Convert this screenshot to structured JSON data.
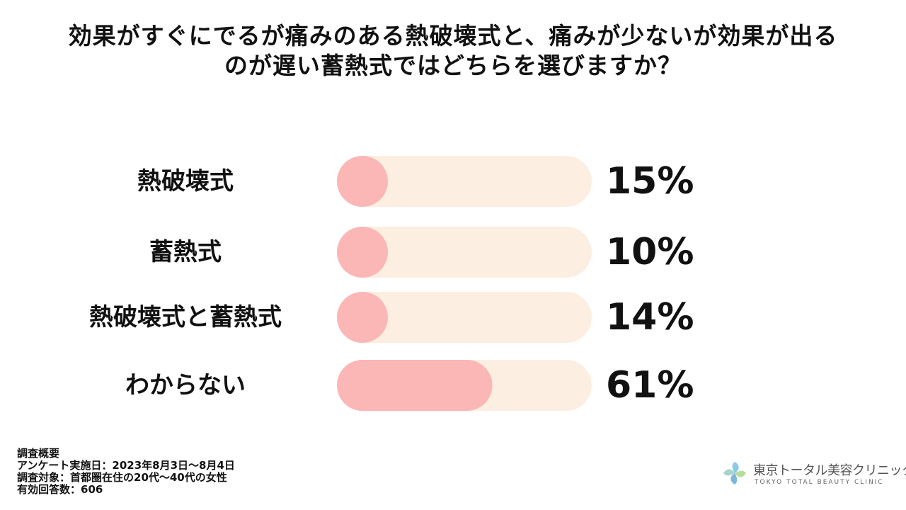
{
  "title": {
    "line1": "効果がすぐにでるが痛みのある熱破壊式と、痛みが少ないが効果が出る",
    "line2": "のが遅い蓄熱式ではどちらを選びますか？"
  },
  "chart_data": {
    "type": "bar",
    "orientation": "horizontal",
    "categories": [
      "熱破壊式",
      "蓄熱式",
      "熱破壊式と蓄熱式",
      "わからない"
    ],
    "values": [
      15,
      10,
      14,
      61
    ],
    "value_labels": [
      "15%",
      "10%",
      "14%",
      "61%"
    ],
    "unit": "%",
    "xlim": [
      0,
      100
    ],
    "colors": {
      "track": "#FDEEE2",
      "bar": "#FBB6B6"
    }
  },
  "survey": {
    "heading": "調査概要",
    "date": "アンケート実施日：2023年8月3日～8月4日",
    "target": "調査対象：首都圏在住の20代～40代の女性",
    "responses": "有効回答数：606"
  },
  "logo": {
    "name_jp": "東京トータル美容クリニック",
    "name_en": "TOKYO TOTAL BEAUTY CLINIC",
    "icon": "leaf-ring-logo-icon"
  }
}
